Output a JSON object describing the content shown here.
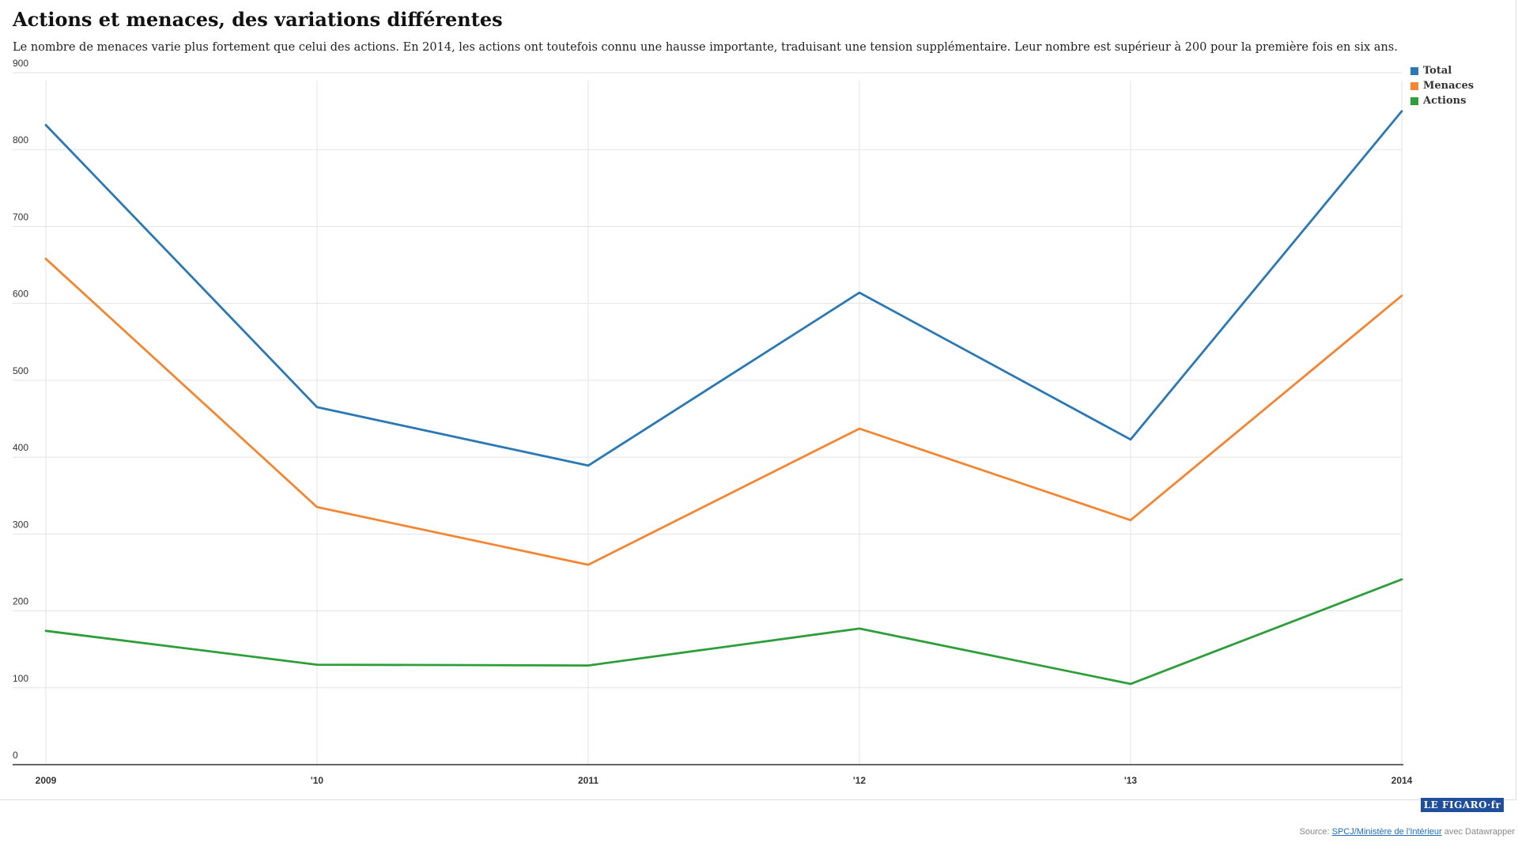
{
  "chart_data": {
    "type": "line",
    "title": "Actions et menaces, des variations différentes",
    "subtitle": "Le nombre de menaces varie plus fortement que celui des actions. En 2014, les actions ont toutefois connu une hausse importante, traduisant une tension supplémentaire. Leur nombre est supérieur à 200 pour la première fois en six ans.",
    "x": [
      2009,
      2010,
      2011,
      2012,
      2013,
      2014
    ],
    "x_tick_labels": [
      "2009",
      "'10",
      "2011",
      "'12",
      "'13",
      "2014"
    ],
    "y_tick_labels": [
      "0",
      "100",
      "200",
      "300",
      "400",
      "500",
      "600",
      "700",
      "800",
      "900"
    ],
    "ylim": [
      0,
      900
    ],
    "grid": true,
    "legend_position": "top-right",
    "series": [
      {
        "name": "Total",
        "color": "#2a78b4",
        "values": [
          832,
          465,
          389,
          614,
          423,
          850
        ]
      },
      {
        "name": "Menaces",
        "color": "#f28632",
        "values": [
          658,
          335,
          260,
          437,
          318,
          610
        ]
      },
      {
        "name": "Actions",
        "color": "#2e9e3a",
        "values": [
          174,
          130,
          129,
          177,
          105,
          241
        ]
      }
    ]
  },
  "logo": {
    "text": "LE FIGARO·fr"
  },
  "source": {
    "prefix": "Source: ",
    "link_text": "SPCJ/Ministère de l'Intérieur",
    "suffix": " avec Datawrapper"
  }
}
